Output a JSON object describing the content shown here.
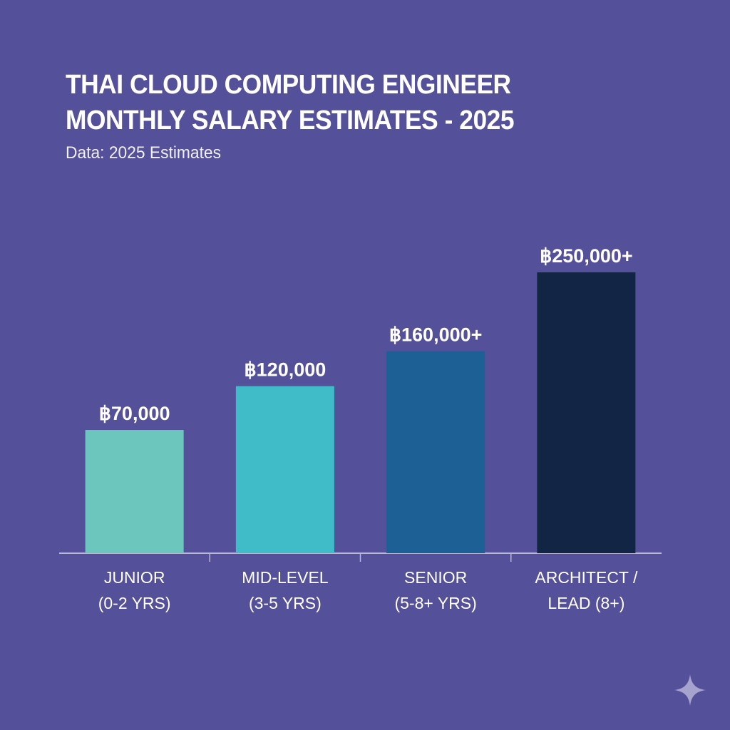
{
  "chart_data": {
    "type": "bar",
    "title": [
      "THAI CLOUD COMPUTING ENGINEER",
      "MONTHLY SALARY ESTIMATES - 2025"
    ],
    "subtitle": "Data: 2025 Estimates",
    "categories": [
      [
        "JUNIOR",
        "(0-2 YRS)"
      ],
      [
        "MID-LEVEL",
        "(3-5 YRS)"
      ],
      [
        "SENIOR",
        "(5-8+ YRS)"
      ],
      [
        "ARCHITECT /",
        "LEAD (8+)"
      ]
    ],
    "values": [
      70000,
      120000,
      160000,
      250000
    ],
    "data_labels": [
      "฿70,000",
      "฿120,000",
      "฿160,000+",
      "฿250,000+"
    ],
    "colors": [
      "#6cc6bd",
      "#40bcc8",
      "#1d6095",
      "#122544"
    ],
    "xlabel": "",
    "ylabel": "",
    "grid": false,
    "legend": "none"
  },
  "colors": {
    "background": "#55509a",
    "axis": "#b9b6d8"
  }
}
